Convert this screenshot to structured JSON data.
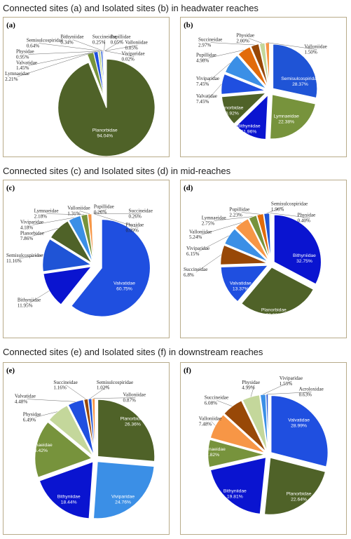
{
  "section_titles": [
    "Connected sites (a) and Isolated sites (b) in headwater reaches",
    "Connected sites (c) and Isolated sites (d) in mid-reaches",
    "Connected sites (e) and Isolated sites (f) in downstream reaches"
  ],
  "colors": {
    "Planorbidae": "#4f6228",
    "Lymnaeidae": "#77933c",
    "Valvatidae": "#1f4fe0",
    "Physidae": "#c4d79b",
    "Semisulcospiridae": "#1f54d6",
    "Bithyniidae": "#0a14d0",
    "Succineidae": "#984807",
    "Pupillidae": "#e26b0a",
    "Valloniidae": "#f79646",
    "Viviparidae": "#3b8fe6",
    "Acroloxidae": "#2a5bd8"
  },
  "chart_data": [
    {
      "type": "pie",
      "panel": "(a)",
      "labels": [
        "Planorbidae",
        "Lymnaeidae",
        "Valvatidae",
        "Physidae",
        "Semisulcospiridae",
        "Bithyniidae",
        "Succineidae",
        "Pupillidae",
        "Valloniidae",
        "Viviparidae"
      ],
      "values": [
        94.04,
        2.21,
        1.45,
        0.95,
        0.64,
        0.34,
        0.25,
        0.05,
        0.05,
        0.02
      ],
      "display": [
        "94.04%",
        "2.21%",
        "1.45%",
        "0.95%",
        "0.64%",
        "0.34%",
        "0.25%",
        "0.05%",
        "0.05%",
        "0.02%"
      ]
    },
    {
      "type": "pie",
      "panel": "(b)",
      "labels": [
        "Semisulcospiridae",
        "Lymnaeidae",
        "Bithyniidae",
        "Planorbidae",
        "Valvatidae",
        "Viviparidae",
        "Pupillidae",
        "Succineidae",
        "Physidae",
        "Valloniidae"
      ],
      "values": [
        28.37,
        22.38,
        11.96,
        10.92,
        7.45,
        7.45,
        4.98,
        2.97,
        2.0,
        1.5
      ],
      "display": [
        "28.37%",
        "22.38%",
        "11.96%",
        "10.92%",
        "7.45%",
        "7.45%",
        "4.98%",
        "2.97%",
        "2.00%",
        "1.50%"
      ]
    },
    {
      "type": "pie",
      "panel": "(c)",
      "labels": [
        "Valvatidae",
        "Bithyniidae",
        "Semisulcospiridae",
        "Planorbidae",
        "Viviparidae",
        "Lymnaeidae",
        "Valloniidae",
        "Pupillidae",
        "Succineidae",
        "Physidae"
      ],
      "values": [
        60.75,
        11.95,
        11.16,
        7.86,
        4.18,
        2.18,
        1.31,
        0.26,
        0.26,
        0.09
      ],
      "display": [
        "60.75%",
        "11.95%",
        "11.16%",
        "7.86%",
        "4.18%",
        "2.18%",
        "1.31%",
        "0.26%",
        "0.26%",
        "0.09%"
      ]
    },
    {
      "type": "pie",
      "panel": "(d)",
      "labels": [
        "Bithyniidae",
        "Planorbidae",
        "Valvatidae",
        "Succineidae",
        "Viviparidae",
        "Valloniidae",
        "Lymnaeidae",
        "Pupillidae",
        "Semisulcospiridae",
        "Physidae"
      ],
      "values": [
        32.75,
        28.33,
        13.37,
        6.8,
        6.15,
        5.24,
        2.75,
        2.23,
        1.96,
        0.4
      ],
      "display": [
        "32.75%",
        "28.33%",
        "13.37%",
        "6.8%",
        "6.15%",
        "5.24%",
        "2.75%",
        "2.23%",
        "1.96%",
        "0.40%"
      ]
    },
    {
      "type": "pie",
      "panel": "(e)",
      "labels": [
        "Planorbidae",
        "Viviparidae",
        "Bithyniidae",
        "Lymnaeidae",
        "Physidae",
        "Valvatidae",
        "Succineidae",
        "Semisulcospiridae",
        "Valloniidae"
      ],
      "values": [
        26.36,
        24.76,
        18.44,
        16.42,
        6.49,
        4.48,
        1.16,
        1.02,
        0.87
      ],
      "display": [
        "26.36%",
        "24.76%",
        "18.44%",
        "16.42%",
        "6.49%",
        "4.48%",
        "1.16%",
        "1.02%",
        "0.87%"
      ]
    },
    {
      "type": "pie",
      "panel": "(f)",
      "labels": [
        "Valvatidae",
        "Planorbidae",
        "Bithyniidae",
        "Lymnaeidae",
        "Valloniidae",
        "Succineidae",
        "Physidae",
        "Viviparidae",
        "Acroloxidae"
      ],
      "values": [
        28.99,
        22.64,
        19.81,
        7.82,
        7.48,
        6.08,
        4.99,
        1.55,
        0.63
      ],
      "display": [
        "28.99%",
        "22.64%",
        "19.81%",
        "7.82%",
        "7.48%",
        "6.08%",
        "4.99%",
        "1.55%",
        "0.63%"
      ]
    }
  ]
}
